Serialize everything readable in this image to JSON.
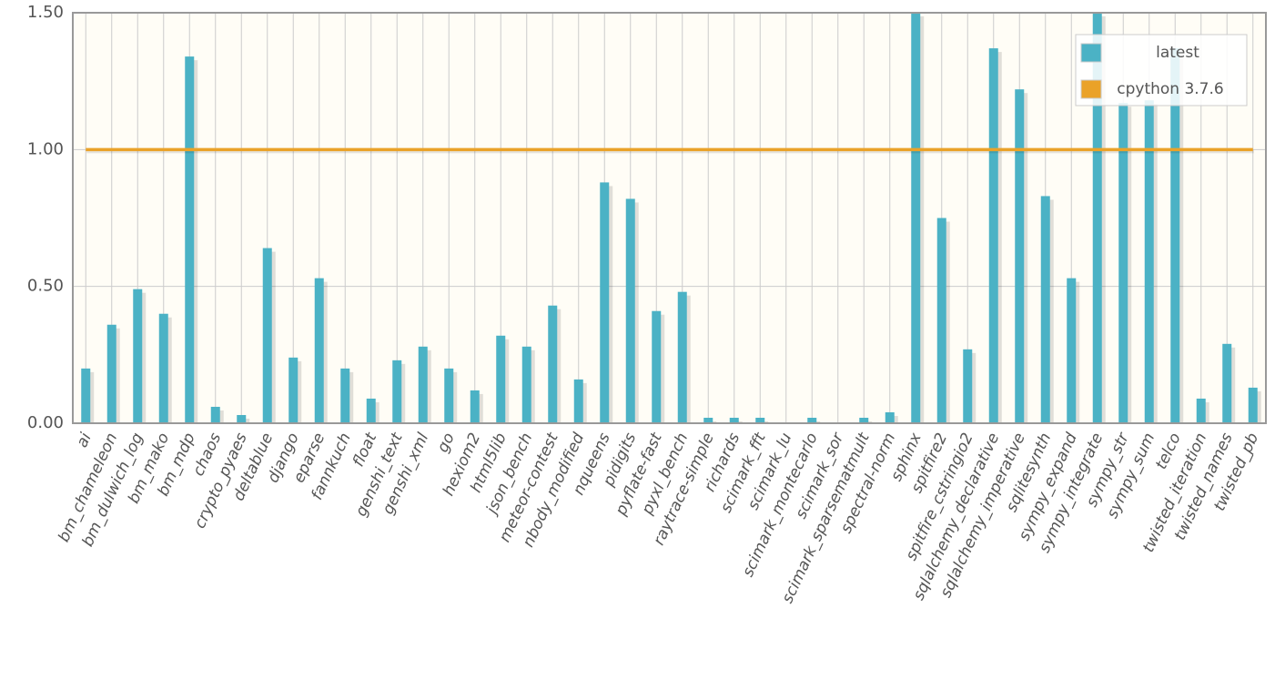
{
  "chart_data": {
    "type": "bar",
    "categories": [
      "ai",
      "bm_chameleon",
      "bm_dulwich_log",
      "bm_mako",
      "bm_mdp",
      "chaos",
      "crypto_pyaes",
      "deltablue",
      "django",
      "eparse",
      "fannkuch",
      "float",
      "genshi_text",
      "genshi_xml",
      "go",
      "hexiom2",
      "html5lib",
      "json_bench",
      "meteor-contest",
      "nbody_modified",
      "nqueens",
      "pidigits",
      "pyflate-fast",
      "pyxl_bench",
      "raytrace-simple",
      "richards",
      "scimark_fft",
      "scimark_lu",
      "scimark_montecarlo",
      "scimark_sor",
      "scimark_sparsematmult",
      "spectral-norm",
      "sphinx",
      "spitfire2",
      "spitfire_cstringio2",
      "sqlalchemy_declarative",
      "sqlalchemy_imperative",
      "sqlitesynth",
      "sympy_expand",
      "sympy_integrate",
      "sympy_str",
      "sympy_sum",
      "telco",
      "twisted_iteration",
      "twisted_names",
      "twisted_pb"
    ],
    "series": [
      {
        "name": "latest",
        "color": "#4bb2c5",
        "type": "bar",
        "values": [
          0.2,
          0.36,
          0.49,
          0.4,
          1.34,
          0.06,
          0.03,
          0.64,
          0.24,
          0.53,
          0.2,
          0.09,
          0.23,
          0.28,
          0.2,
          0.12,
          0.32,
          0.28,
          0.43,
          0.16,
          0.88,
          0.82,
          0.41,
          0.48,
          0.02,
          0.02,
          0.02,
          0,
          0.02,
          0,
          0.02,
          0.04,
          1.5,
          0.75,
          0.27,
          1.37,
          1.22,
          0.83,
          0.53,
          1.5,
          1.17,
          1.18,
          1.37,
          0.09,
          0.29,
          0.13
        ]
      },
      {
        "name": "cpython 3.7.6",
        "color": "#eaa228",
        "type": "line",
        "values": [
          1,
          1,
          1,
          1,
          1,
          1,
          1,
          1,
          1,
          1,
          1,
          1,
          1,
          1,
          1,
          1,
          1,
          1,
          1,
          1,
          1,
          1,
          1,
          1,
          1,
          1,
          1,
          1,
          1,
          1,
          1,
          1,
          1,
          1,
          1,
          1,
          1,
          1,
          1,
          1,
          1,
          1,
          1,
          1,
          1,
          1
        ]
      }
    ],
    "ylim": [
      0,
      1.5
    ],
    "yticks": [
      {
        "value": 0,
        "label": "0.00"
      },
      {
        "value": 0.5,
        "label": "0.50"
      },
      {
        "value": 1,
        "label": "1.00"
      },
      {
        "value": 1.5,
        "label": "1.50"
      }
    ],
    "grid": true,
    "legend": "top-right"
  }
}
